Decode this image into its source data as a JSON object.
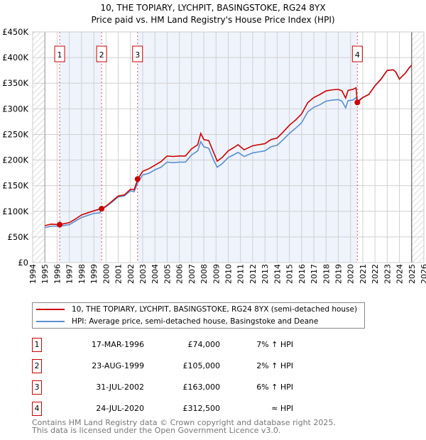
{
  "title": "10, THE TOPIARY, LYCHPIT, BASINGSTOKE, RG24 8YX",
  "subtitle": "Price paid vs. HM Land Registry's House Price Index (HPI)",
  "chart_data": {
    "type": "line",
    "xlim": [
      1994,
      2026
    ],
    "ylim": [
      0,
      450000
    ],
    "x_ticks": [
      "1994",
      "1995",
      "1996",
      "1997",
      "1998",
      "1999",
      "2000",
      "2001",
      "2002",
      "2003",
      "2004",
      "2005",
      "2006",
      "2007",
      "2008",
      "2009",
      "2010",
      "2011",
      "2012",
      "2013",
      "2014",
      "2015",
      "2016",
      "2017",
      "2018",
      "2019",
      "2020",
      "2021",
      "2022",
      "2023",
      "2024",
      "2025",
      "2026"
    ],
    "y_ticks": [
      {
        "v": 0,
        "label": "£0"
      },
      {
        "v": 50000,
        "label": "£50K"
      },
      {
        "v": 100000,
        "label": "£100K"
      },
      {
        "v": 150000,
        "label": "£150K"
      },
      {
        "v": 200000,
        "label": "£200K"
      },
      {
        "v": 250000,
        "label": "£250K"
      },
      {
        "v": 300000,
        "label": "£300K"
      },
      {
        "v": 350000,
        "label": "£350K"
      },
      {
        "v": 400000,
        "label": "£400K"
      },
      {
        "v": 450000,
        "label": "£450K"
      }
    ],
    "series": [
      {
        "name": "10, THE TOPIARY, LYCHPIT, BASINGSTOKE, RG24 8YX (semi-detached house)",
        "color": "#cc0000",
        "points": [
          [
            1995.0,
            72
          ],
          [
            1995.5,
            75
          ],
          [
            1996.2,
            74
          ],
          [
            1997,
            78
          ],
          [
            1997.5,
            85
          ],
          [
            1998,
            93
          ],
          [
            1998.5,
            97
          ],
          [
            1999,
            101
          ],
          [
            1999.6,
            105
          ],
          [
            2000,
            110
          ],
          [
            2000.5,
            120
          ],
          [
            2001,
            130
          ],
          [
            2001.5,
            132
          ],
          [
            2002,
            143
          ],
          [
            2002.3,
            142
          ],
          [
            2002.6,
            163
          ],
          [
            2003,
            178
          ],
          [
            2003.5,
            183
          ],
          [
            2004,
            190
          ],
          [
            2004.5,
            197
          ],
          [
            2005,
            208
          ],
          [
            2005.5,
            207
          ],
          [
            2006,
            208
          ],
          [
            2006.5,
            208
          ],
          [
            2007,
            222
          ],
          [
            2007.5,
            230
          ],
          [
            2007.75,
            252
          ],
          [
            2008,
            240
          ],
          [
            2008.4,
            238
          ],
          [
            2008.8,
            215
          ],
          [
            2009.1,
            198
          ],
          [
            2009.5,
            205
          ],
          [
            2010,
            218
          ],
          [
            2010.5,
            225
          ],
          [
            2010.8,
            230
          ],
          [
            2011.3,
            220
          ],
          [
            2012,
            228
          ],
          [
            2012.5,
            230
          ],
          [
            2013,
            232
          ],
          [
            2013.5,
            240
          ],
          [
            2014,
            243
          ],
          [
            2014.5,
            255
          ],
          [
            2015,
            268
          ],
          [
            2015.5,
            278
          ],
          [
            2016,
            290
          ],
          [
            2016.5,
            312
          ],
          [
            2017,
            322
          ],
          [
            2017.5,
            328
          ],
          [
            2018,
            335
          ],
          [
            2018.5,
            337
          ],
          [
            2019,
            338
          ],
          [
            2019.3,
            335
          ],
          [
            2019.6,
            321
          ],
          [
            2019.8,
            336
          ],
          [
            2020.2,
            338
          ],
          [
            2020.45,
            341
          ],
          [
            2020.56,
            312.5
          ],
          [
            2021,
            322
          ],
          [
            2021.5,
            328
          ],
          [
            2022,
            345
          ],
          [
            2022.5,
            358
          ],
          [
            2023,
            375
          ],
          [
            2023.5,
            376
          ],
          [
            2023.7,
            372
          ],
          [
            2024,
            358
          ],
          [
            2024.5,
            370
          ],
          [
            2024.8,
            380
          ],
          [
            2025,
            385
          ]
        ]
      },
      {
        "name": "HPI: Average price, semi-detached house, Basingstoke and Deane",
        "color": "#5b8fd0",
        "points": [
          [
            1995.0,
            68
          ],
          [
            1995.5,
            71
          ],
          [
            1996.2,
            71
          ],
          [
            1997,
            74
          ],
          [
            1997.5,
            81
          ],
          [
            1998,
            88
          ],
          [
            1998.5,
            92
          ],
          [
            1999,
            96
          ],
          [
            1999.5,
            97
          ],
          [
            1999.6,
            104
          ],
          [
            2000,
            109
          ],
          [
            2000.5,
            118
          ],
          [
            2001,
            128
          ],
          [
            2001.5,
            130
          ],
          [
            2002,
            140
          ],
          [
            2002.3,
            138
          ],
          [
            2002.6,
            156
          ],
          [
            2003,
            171
          ],
          [
            2003.5,
            174
          ],
          [
            2004,
            181
          ],
          [
            2004.5,
            186
          ],
          [
            2005,
            196
          ],
          [
            2005.5,
            195
          ],
          [
            2006,
            196
          ],
          [
            2006.5,
            196
          ],
          [
            2007,
            210
          ],
          [
            2007.5,
            218
          ],
          [
            2007.75,
            236
          ],
          [
            2008,
            226
          ],
          [
            2008.4,
            223
          ],
          [
            2008.8,
            200
          ],
          [
            2009.1,
            186
          ],
          [
            2009.5,
            193
          ],
          [
            2010,
            205
          ],
          [
            2010.5,
            211
          ],
          [
            2010.8,
            215
          ],
          [
            2011.3,
            207
          ],
          [
            2012,
            214
          ],
          [
            2012.5,
            216
          ],
          [
            2013,
            218
          ],
          [
            2013.5,
            226
          ],
          [
            2014,
            229
          ],
          [
            2014.5,
            240
          ],
          [
            2015,
            252
          ],
          [
            2015.5,
            262
          ],
          [
            2016,
            273
          ],
          [
            2016.5,
            294
          ],
          [
            2017,
            303
          ],
          [
            2017.5,
            308
          ],
          [
            2018,
            315
          ],
          [
            2018.5,
            317
          ],
          [
            2019,
            318
          ],
          [
            2019.3,
            315
          ],
          [
            2019.6,
            302
          ],
          [
            2019.8,
            316
          ],
          [
            2020.2,
            317
          ],
          [
            2020.45,
            322
          ],
          [
            2020.56,
            315
          ],
          [
            2021,
            322
          ],
          [
            2021.5,
            328
          ],
          [
            2022,
            345
          ],
          [
            2022.5,
            358
          ],
          [
            2023,
            375
          ],
          [
            2023.5,
            376
          ],
          [
            2023.7,
            372
          ],
          [
            2024,
            358
          ],
          [
            2024.5,
            370
          ],
          [
            2024.8,
            380
          ],
          [
            2025,
            385
          ]
        ]
      }
    ],
    "sales": [
      {
        "n": "1",
        "x": 1996.21,
        "price": 74000,
        "date": "17-MAR-1996",
        "price_label": "£74,000",
        "hpi": "7% ↑ HPI"
      },
      {
        "n": "2",
        "x": 1999.64,
        "price": 105000,
        "date": "23-AUG-1999",
        "price_label": "£105,000",
        "hpi": "2% ↑ HPI"
      },
      {
        "n": "3",
        "x": 2002.58,
        "price": 163000,
        "date": "31-JUL-2002",
        "price_label": "£163,000",
        "hpi": "6% ↑ HPI"
      },
      {
        "n": "4",
        "x": 2020.56,
        "price": 312500,
        "date": "24-JUL-2020",
        "price_label": "£312,500",
        "hpi": "≈ HPI"
      }
    ]
  },
  "footer": [
    "Contains HM Land Registry data © Crown copyright and database right 2025.",
    "This data is licensed under the Open Government Licence v3.0."
  ]
}
